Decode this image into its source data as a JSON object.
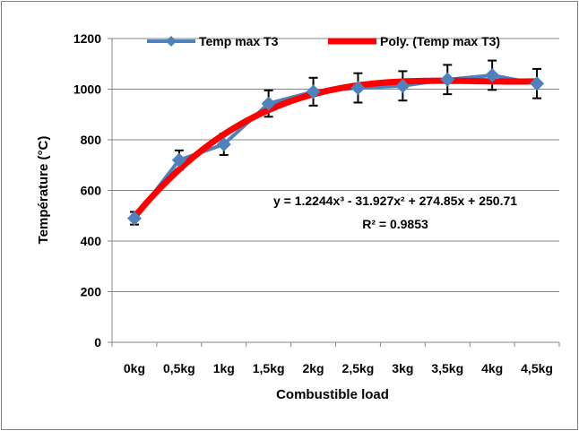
{
  "chart_data": {
    "type": "line",
    "title": "",
    "xlabel": "Combustible load",
    "ylabel": "Température (°C)",
    "categories": [
      "0kg",
      "0,5kg",
      "1kg",
      "1,5kg",
      "2kg",
      "2,5kg",
      "3kg",
      "3,5kg",
      "4kg",
      "4,5kg"
    ],
    "ylim": [
      0,
      1200
    ],
    "yticks": [
      "0",
      "200",
      "400",
      "600",
      "800",
      "1000",
      "1200"
    ],
    "grid": true,
    "legend_position": "top",
    "series": [
      {
        "name": "Temp max T3",
        "kind": "markers-with-error-bars",
        "color": "#4f81bd",
        "marker": "diamond",
        "values": [
          490,
          720,
          782,
          943,
          990,
          1005,
          1013,
          1038,
          1055,
          1022
        ],
        "error": [
          25,
          38,
          42,
          52,
          55,
          58,
          58,
          58,
          58,
          58
        ]
      },
      {
        "name": "Poly. (Temp max T3)",
        "kind": "trendline",
        "color": "#ff0000",
        "polynomial_coefficients": [
          1.2244,
          -31.927,
          274.85,
          250.71
        ]
      }
    ],
    "annotations": {
      "equation": "y = 1.2244x³ - 31.927x² + 274.85x + 250.71",
      "r_squared": "R² = 0.9853"
    },
    "colors": {
      "frame_border": "#7f7f7f",
      "gridline": "#868686",
      "axis": "#868686",
      "error_bar": "#000000"
    }
  }
}
